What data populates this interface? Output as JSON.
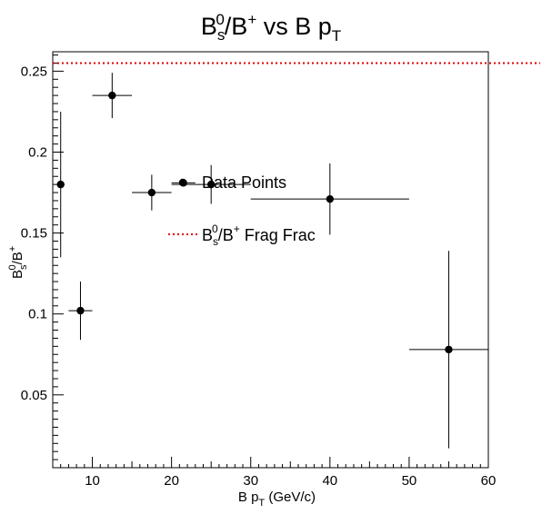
{
  "chart_data": {
    "type": "scatter",
    "title": {
      "main": "B",
      "main_sup": "0",
      "main_sub": "s",
      "mid": "/B",
      "mid_sup": "+",
      "tail": " vs B p",
      "tail_sub": "T"
    },
    "xlabel": {
      "main": "B p",
      "sub": "T",
      "tail": " (GeV/c)"
    },
    "ylabel": {
      "main": "B",
      "sup": "0",
      "sub": "s",
      "mid": "/B",
      "mid_sup": "+"
    },
    "xlim": [
      5,
      60
    ],
    "ylim": [
      0.005,
      0.262
    ],
    "x_ticks": [
      10,
      20,
      30,
      40,
      50,
      60
    ],
    "y_ticks": [
      0.05,
      0.1,
      0.15,
      0.2,
      0.25
    ],
    "y_tick_labels": [
      "0.05",
      "0.1",
      "0.15",
      "0.2",
      "0.25"
    ],
    "grid": false,
    "series": [
      {
        "name": "Data Points",
        "marker": "circle",
        "color": "#000000",
        "points": [
          {
            "x": 6.0,
            "y": 0.18,
            "xerr": 0.5,
            "yerr": 0.045
          },
          {
            "x": 8.5,
            "y": 0.102,
            "xerr": 1.5,
            "yerr": 0.018
          },
          {
            "x": 12.5,
            "y": 0.235,
            "xerr": 2.5,
            "yerr": 0.014
          },
          {
            "x": 17.5,
            "y": 0.175,
            "xerr": 2.5,
            "yerr": 0.011
          },
          {
            "x": 21.5,
            "y": 0.181,
            "xerr": 1.5,
            "yerr": 0.002
          },
          {
            "x": 25.0,
            "y": 0.18,
            "xerr": 5.0,
            "yerr": 0.012
          },
          {
            "x": 40.0,
            "y": 0.171,
            "xerr": 10.0,
            "yerr": 0.022
          },
          {
            "x": 55.0,
            "y": 0.078,
            "xerr": 5.0,
            "yerr": 0.061
          }
        ]
      }
    ],
    "reference_line": {
      "y": 0.255,
      "color": "#e00000",
      "style": "dotted"
    },
    "legend": {
      "placement": "center",
      "entries": [
        {
          "label": "Data Points"
        },
        {
          "label_main": "B",
          "label_sup": "0",
          "label_sub": "s",
          "label_mid": "/B",
          "label_mid_sup": "+",
          "label_tail": " Frag Frac",
          "color": "#e00000"
        }
      ]
    }
  }
}
